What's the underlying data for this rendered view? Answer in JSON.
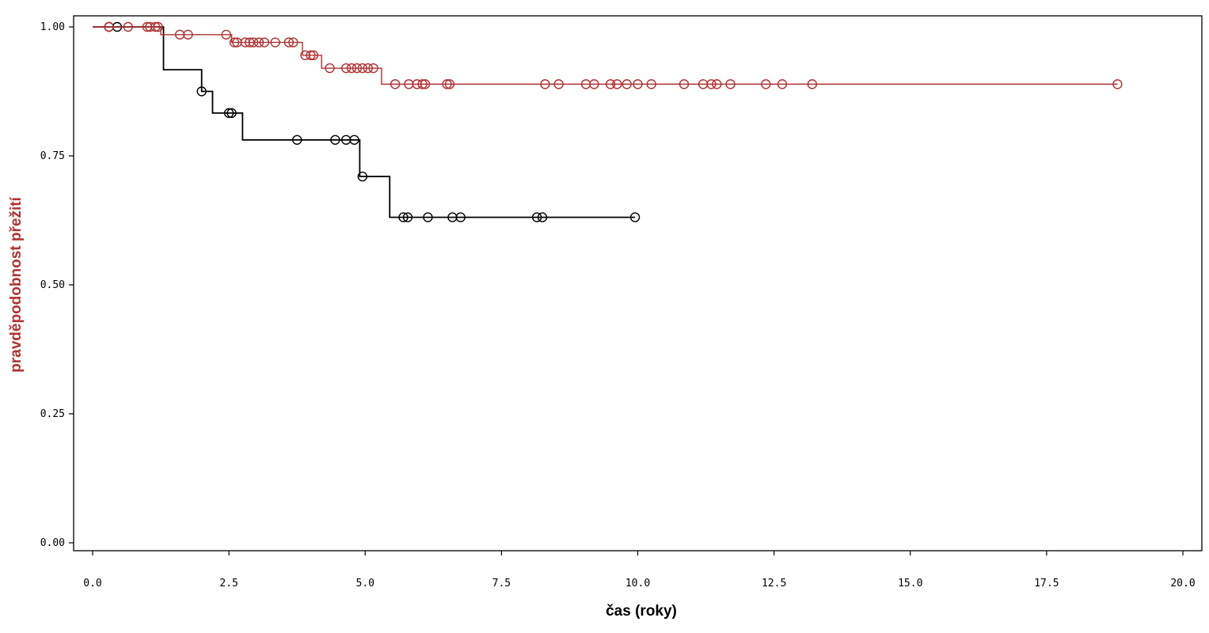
{
  "chart_data": {
    "type": "line",
    "title": "",
    "xlabel": "čas (roky)",
    "ylabel": "pravděpodobnost přežití",
    "xlim": [
      0,
      20
    ],
    "ylim": [
      0,
      1
    ],
    "x_ticks": [
      "0.0",
      "2.5",
      "5.0",
      "7.5",
      "10.0",
      "12.5",
      "15.0",
      "17.5",
      "20.0"
    ],
    "y_ticks": [
      "0.00",
      "0.25",
      "0.50",
      "0.75",
      "1.00"
    ],
    "grid": false,
    "colors": {
      "black_series": "#000000",
      "red_series": "#b03030",
      "ylabel": "#b03030",
      "xlabel": "#000000"
    },
    "series": [
      {
        "color": "black_series",
        "steps": [
          [
            0,
            1.0
          ],
          [
            1.3,
            0.917
          ],
          [
            2.0,
            0.875
          ],
          [
            2.2,
            0.833
          ],
          [
            2.75,
            0.781
          ],
          [
            4.9,
            0.71
          ],
          [
            5.45,
            0.631
          ]
        ],
        "end_x": 9.95,
        "censored": [
          [
            0.3,
            1.0
          ],
          [
            0.45,
            1.0
          ],
          [
            2.0,
            0.875
          ],
          [
            2.5,
            0.833
          ],
          [
            2.55,
            0.833
          ],
          [
            3.75,
            0.781
          ],
          [
            4.45,
            0.781
          ],
          [
            4.65,
            0.781
          ],
          [
            4.8,
            0.781
          ],
          [
            4.95,
            0.71
          ],
          [
            5.7,
            0.631
          ],
          [
            5.78,
            0.631
          ],
          [
            6.15,
            0.631
          ],
          [
            6.6,
            0.631
          ],
          [
            6.75,
            0.631
          ],
          [
            8.15,
            0.631
          ],
          [
            8.25,
            0.631
          ],
          [
            9.95,
            0.631
          ]
        ]
      },
      {
        "color": "red_series",
        "steps": [
          [
            0,
            1.0
          ],
          [
            1.25,
            0.985
          ],
          [
            1.35,
            0.985
          ],
          [
            1.4,
            0.985
          ],
          [
            1.4,
            0.985
          ],
          [
            2.55,
            0.97
          ],
          [
            2.75,
            0.97
          ],
          [
            3.85,
            0.945
          ],
          [
            4.2,
            0.92
          ],
          [
            5.3,
            0.889
          ]
        ],
        "end_x": 18.8,
        "censored": [
          [
            0.3,
            1.0
          ],
          [
            0.65,
            1.0
          ],
          [
            1.0,
            1.0
          ],
          [
            1.05,
            1.0
          ],
          [
            1.15,
            1.0
          ],
          [
            1.2,
            1.0
          ],
          [
            1.6,
            0.985
          ],
          [
            1.75,
            0.985
          ],
          [
            2.45,
            0.985
          ],
          [
            2.6,
            0.97
          ],
          [
            2.65,
            0.97
          ],
          [
            2.8,
            0.97
          ],
          [
            2.88,
            0.97
          ],
          [
            2.95,
            0.97
          ],
          [
            3.05,
            0.97
          ],
          [
            3.15,
            0.97
          ],
          [
            3.35,
            0.97
          ],
          [
            3.6,
            0.97
          ],
          [
            3.68,
            0.97
          ],
          [
            3.9,
            0.945
          ],
          [
            4.0,
            0.945
          ],
          [
            4.05,
            0.945
          ],
          [
            4.35,
            0.92
          ],
          [
            4.65,
            0.92
          ],
          [
            4.75,
            0.92
          ],
          [
            4.85,
            0.92
          ],
          [
            4.95,
            0.92
          ],
          [
            5.05,
            0.92
          ],
          [
            5.15,
            0.92
          ],
          [
            5.55,
            0.889
          ],
          [
            5.8,
            0.889
          ],
          [
            5.95,
            0.889
          ],
          [
            6.05,
            0.889
          ],
          [
            6.1,
            0.889
          ],
          [
            6.5,
            0.889
          ],
          [
            6.55,
            0.889
          ],
          [
            8.3,
            0.889
          ],
          [
            8.55,
            0.889
          ],
          [
            9.05,
            0.889
          ],
          [
            9.2,
            0.889
          ],
          [
            9.5,
            0.889
          ],
          [
            9.62,
            0.889
          ],
          [
            9.8,
            0.889
          ],
          [
            10.0,
            0.889
          ],
          [
            10.25,
            0.889
          ],
          [
            10.85,
            0.889
          ],
          [
            11.2,
            0.889
          ],
          [
            11.35,
            0.889
          ],
          [
            11.45,
            0.889
          ],
          [
            11.7,
            0.889
          ],
          [
            12.35,
            0.889
          ],
          [
            12.65,
            0.889
          ],
          [
            13.2,
            0.889
          ],
          [
            18.8,
            0.889
          ]
        ]
      }
    ]
  }
}
